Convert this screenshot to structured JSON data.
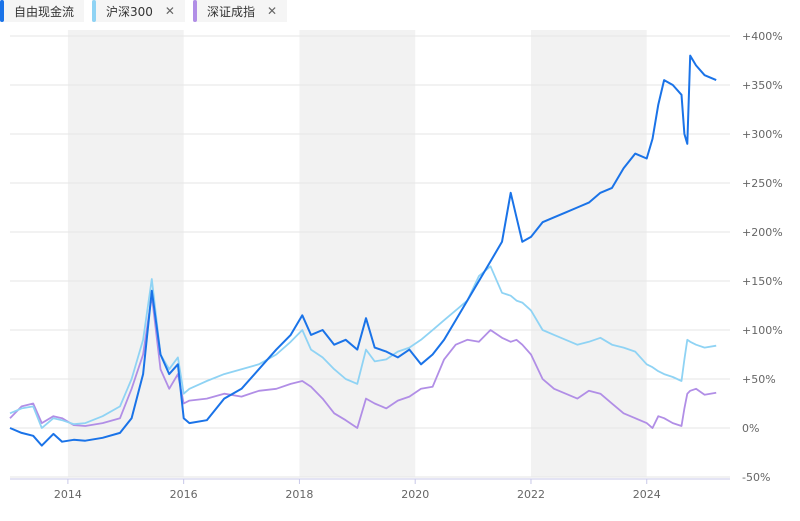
{
  "legend": {
    "items": [
      {
        "label": "自由现金流",
        "color": "#1a73e8",
        "closable": false
      },
      {
        "label": "沪深300",
        "color": "#8fd3f4",
        "closable": true,
        "close_icon": "close-icon"
      },
      {
        "label": "深证成指",
        "color": "#b18ee6",
        "closable": true,
        "close_icon": "close-icon"
      }
    ],
    "close_glyph": "✕"
  },
  "chart_data": {
    "type": "line",
    "title": "",
    "xlabel": "",
    "ylabel": "",
    "xlim": [
      2013,
      2025.3
    ],
    "ylim": [
      -50,
      400
    ],
    "x_ticks": [
      {
        "value": 2014,
        "label": "2014"
      },
      {
        "value": 2016,
        "label": "2016"
      },
      {
        "value": 2018,
        "label": "2018"
      },
      {
        "value": 2020,
        "label": "2020"
      },
      {
        "value": 2022,
        "label": "2022"
      },
      {
        "value": 2024,
        "label": "2024"
      }
    ],
    "y_ticks": [
      {
        "value": 400,
        "label": "+400%"
      },
      {
        "value": 350,
        "label": "+350%"
      },
      {
        "value": 300,
        "label": "+300%"
      },
      {
        "value": 250,
        "label": "+250%"
      },
      {
        "value": 200,
        "label": "+200%"
      },
      {
        "value": 150,
        "label": "+150%"
      },
      {
        "value": 100,
        "label": "+100%"
      },
      {
        "value": 50,
        "label": "+50%"
      },
      {
        "value": 0,
        "label": "0%"
      },
      {
        "value": -50,
        "label": "-50%"
      }
    ],
    "shaded_bands": [
      [
        2014,
        2016
      ],
      [
        2018,
        2020
      ],
      [
        2022,
        2024
      ]
    ],
    "series": [
      {
        "name": "自由现金流",
        "color": "#1a73e8",
        "x": [
          2013.0,
          2013.2,
          2013.4,
          2013.55,
          2013.75,
          2013.9,
          2014.1,
          2014.3,
          2014.6,
          2014.9,
          2015.1,
          2015.3,
          2015.45,
          2015.6,
          2015.75,
          2015.9,
          2016.0,
          2016.1,
          2016.4,
          2016.7,
          2017.0,
          2017.3,
          2017.6,
          2017.85,
          2018.05,
          2018.2,
          2018.4,
          2018.6,
          2018.8,
          2019.0,
          2019.15,
          2019.3,
          2019.5,
          2019.7,
          2019.9,
          2020.1,
          2020.3,
          2020.5,
          2020.7,
          2020.9,
          2021.1,
          2021.3,
          2021.5,
          2021.65,
          2021.75,
          2021.85,
          2022.0,
          2022.2,
          2022.4,
          2022.6,
          2022.8,
          2023.0,
          2023.2,
          2023.4,
          2023.6,
          2023.8,
          2024.0,
          2024.1,
          2024.2,
          2024.3,
          2024.45,
          2024.6,
          2024.65,
          2024.7,
          2024.75,
          2024.85,
          2025.0,
          2025.2
        ],
        "values": [
          0,
          -5,
          -8,
          -18,
          -6,
          -14,
          -12,
          -13,
          -10,
          -5,
          10,
          55,
          140,
          75,
          55,
          65,
          10,
          5,
          8,
          30,
          40,
          60,
          80,
          95,
          115,
          95,
          100,
          85,
          90,
          80,
          112,
          82,
          78,
          72,
          80,
          65,
          75,
          90,
          110,
          130,
          150,
          170,
          190,
          240,
          215,
          190,
          195,
          210,
          215,
          220,
          225,
          230,
          240,
          245,
          265,
          280,
          275,
          295,
          330,
          355,
          350,
          340,
          300,
          290,
          380,
          370,
          360,
          355
        ]
      },
      {
        "name": "沪深300",
        "color": "#8fd3f4",
        "x": [
          2013.0,
          2013.2,
          2013.4,
          2013.55,
          2013.75,
          2013.9,
          2014.1,
          2014.3,
          2014.6,
          2014.9,
          2015.1,
          2015.3,
          2015.45,
          2015.6,
          2015.75,
          2015.9,
          2016.0,
          2016.1,
          2016.4,
          2016.7,
          2017.0,
          2017.3,
          2017.6,
          2017.85,
          2018.05,
          2018.2,
          2018.4,
          2018.6,
          2018.8,
          2019.0,
          2019.15,
          2019.3,
          2019.5,
          2019.7,
          2019.9,
          2020.1,
          2020.3,
          2020.5,
          2020.7,
          2020.9,
          2021.1,
          2021.3,
          2021.5,
          2021.65,
          2021.75,
          2021.85,
          2022.0,
          2022.2,
          2022.4,
          2022.6,
          2022.8,
          2023.0,
          2023.2,
          2023.4,
          2023.6,
          2023.8,
          2024.0,
          2024.1,
          2024.2,
          2024.3,
          2024.45,
          2024.6,
          2024.65,
          2024.7,
          2024.75,
          2024.85,
          2025.0,
          2025.2
        ],
        "values": [
          15,
          20,
          22,
          0,
          10,
          8,
          4,
          5,
          12,
          22,
          50,
          90,
          152,
          75,
          60,
          72,
          35,
          40,
          48,
          55,
          60,
          65,
          75,
          88,
          100,
          80,
          72,
          60,
          50,
          45,
          80,
          68,
          70,
          78,
          82,
          90,
          100,
          110,
          120,
          130,
          155,
          165,
          138,
          135,
          130,
          128,
          120,
          100,
          95,
          90,
          85,
          88,
          92,
          85,
          82,
          78,
          65,
          62,
          58,
          55,
          52,
          48,
          70,
          90,
          88,
          85,
          82,
          84
        ]
      },
      {
        "name": "深证成指",
        "color": "#b18ee6",
        "x": [
          2013.0,
          2013.2,
          2013.4,
          2013.55,
          2013.75,
          2013.9,
          2014.1,
          2014.3,
          2014.6,
          2014.9,
          2015.1,
          2015.3,
          2015.45,
          2015.6,
          2015.75,
          2015.9,
          2016.0,
          2016.1,
          2016.4,
          2016.7,
          2017.0,
          2017.3,
          2017.6,
          2017.85,
          2018.05,
          2018.2,
          2018.4,
          2018.6,
          2018.8,
          2019.0,
          2019.15,
          2019.3,
          2019.5,
          2019.7,
          2019.9,
          2020.1,
          2020.3,
          2020.5,
          2020.7,
          2020.9,
          2021.1,
          2021.3,
          2021.5,
          2021.65,
          2021.75,
          2021.85,
          2022.0,
          2022.2,
          2022.4,
          2022.6,
          2022.8,
          2023.0,
          2023.2,
          2023.4,
          2023.6,
          2023.8,
          2024.0,
          2024.1,
          2024.2,
          2024.3,
          2024.45,
          2024.6,
          2024.65,
          2024.7,
          2024.75,
          2024.85,
          2025.0,
          2025.2
        ],
        "values": [
          10,
          22,
          25,
          5,
          12,
          10,
          3,
          2,
          5,
          10,
          40,
          75,
          135,
          60,
          40,
          55,
          25,
          28,
          30,
          35,
          32,
          38,
          40,
          45,
          48,
          42,
          30,
          15,
          8,
          0,
          30,
          25,
          20,
          28,
          32,
          40,
          42,
          70,
          85,
          90,
          88,
          100,
          92,
          88,
          90,
          85,
          75,
          50,
          40,
          35,
          30,
          38,
          35,
          25,
          15,
          10,
          5,
          0,
          12,
          10,
          5,
          2,
          20,
          35,
          38,
          40,
          34,
          36
        ]
      }
    ]
  }
}
